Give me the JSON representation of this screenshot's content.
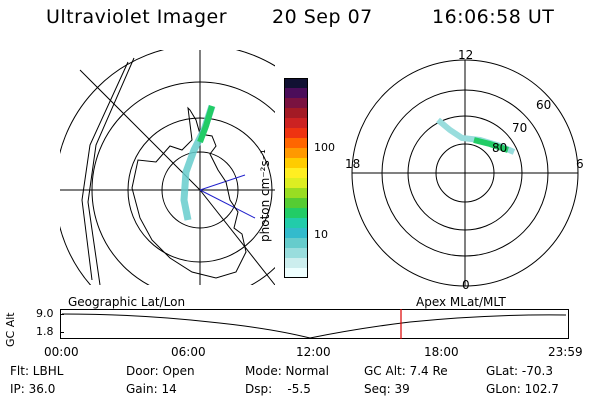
{
  "header": {
    "instrument": "Ultraviolet Imager",
    "date": "20 Sep 07",
    "time": "16:06:58 UT"
  },
  "colorbar": {
    "unit_label": "photon cm⁻²s⁻¹",
    "ticks": [
      "100",
      "10"
    ],
    "colors": [
      "#111133",
      "#4b0d5a",
      "#7a1240",
      "#a31a25",
      "#cc2222",
      "#ee3311",
      "#ff6600",
      "#ff9900",
      "#ffcc00",
      "#ffee22",
      "#ddee22",
      "#99dd22",
      "#55cc33",
      "#22cc66",
      "#22ccaa",
      "#33bbcc",
      "#66cccc",
      "#99dddd",
      "#cceeee",
      "#eeffff"
    ]
  },
  "left_map": {
    "caption": "Geographic Lat/Lon"
  },
  "right_dial": {
    "caption": "Apex MLat/MLT",
    "hour_labels": {
      "top": "12",
      "left": "18",
      "right": "6",
      "bottom": "0"
    },
    "lat_labels": [
      "60",
      "70",
      "80"
    ]
  },
  "altitude_plot": {
    "ylabel": "GC Alt",
    "y_ticks": [
      "9.0",
      "1.8"
    ],
    "x_ticks": [
      "00:00",
      "06:00",
      "12:00",
      "18:00",
      "23:59"
    ],
    "current_time_marker_color": "#dd0000"
  },
  "info": {
    "flt": "Flt: LBHL",
    "ip": "IP: 36.0",
    "door": "Door: Open",
    "gain": "Gain: 14",
    "mode": "Mode: Normal",
    "dsp": "Dsp:    -5.5",
    "gcalt": "GC Alt: 7.4 Re",
    "seq": "Seq: 39",
    "glat": "GLat: -70.3",
    "glon": "GLon: 102.7"
  }
}
